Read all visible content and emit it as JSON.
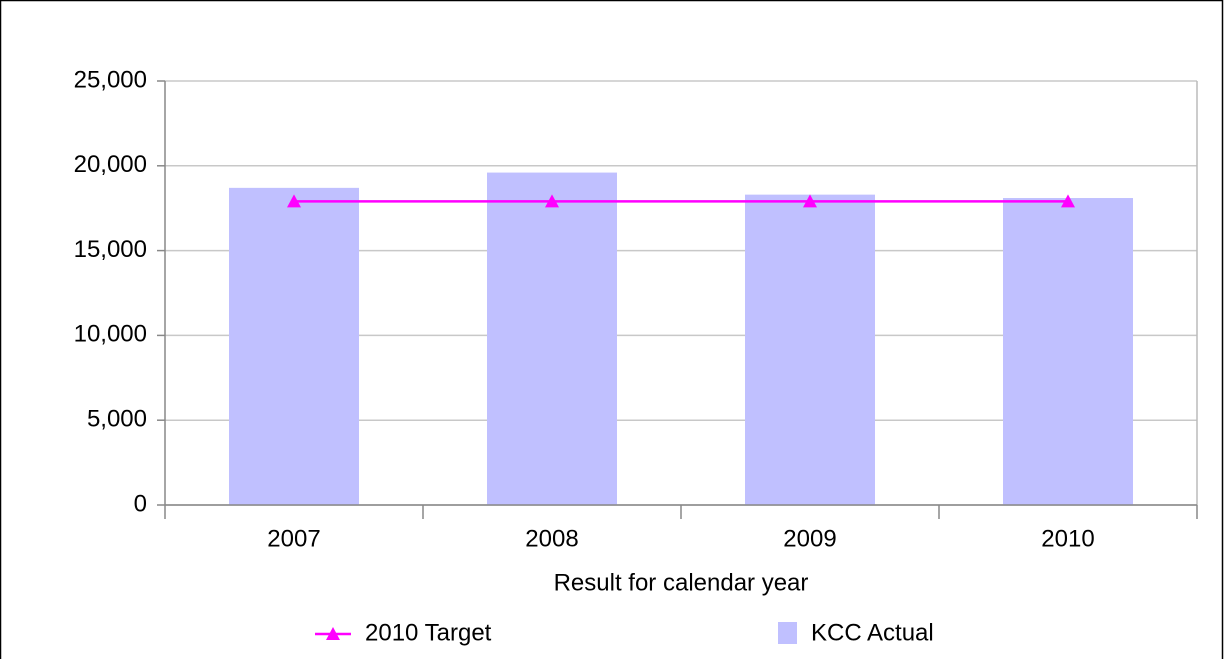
{
  "chart_data": {
    "type": "bar",
    "x_label": "Result for calendar year",
    "categories": [
      "2007",
      "2008",
      "2009",
      "2010"
    ],
    "series": [
      {
        "name": "2010 Target",
        "type": "line",
        "color": "#ff00ff",
        "values": [
          17900,
          17900,
          17900,
          17900
        ]
      },
      {
        "name": "KCC Actual",
        "type": "bar",
        "color": "#c0c0ff",
        "values": [
          18700,
          19600,
          18300,
          18100
        ]
      }
    ],
    "ylim": [
      0,
      25000
    ],
    "yticks": [
      0,
      {
        "value": 5000,
        "label": "5,000"
      },
      {
        "value": 10000,
        "label": "10,000"
      },
      {
        "value": 15000,
        "label": "15,000"
      },
      {
        "value": 20000,
        "label": "20,000"
      },
      {
        "value": 25000,
        "label": "25,000"
      }
    ],
    "grid": true,
    "legend": "bottom"
  }
}
